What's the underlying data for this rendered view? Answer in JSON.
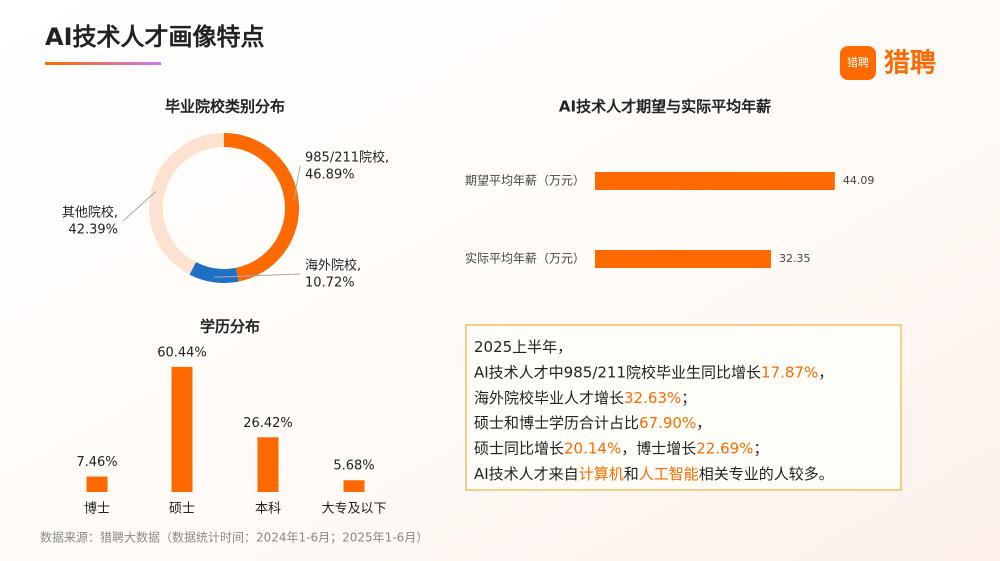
{
  "header": {
    "title": "AI技术人才画像特点"
  },
  "logo": {
    "badge": "猎聘",
    "name": "猎聘"
  },
  "chart_data": [
    {
      "type": "donut",
      "title": "毕业院校类别分布",
      "categories": [
        "985/211院校,",
        "海外院校,",
        "其他院校,"
      ],
      "values": [
        46.89,
        10.72,
        42.39
      ],
      "value_labels": [
        "46.89%",
        "10.72%",
        "42.39%"
      ],
      "colors": [
        "#ff6a00",
        "#1f6fc6",
        "#fde2d2"
      ]
    },
    {
      "type": "hbar",
      "title": "AI技术人才期望与实际平均年薪",
      "categories": [
        "期望平均年薪（万元）",
        "实际平均年薪（万元）"
      ],
      "values": [
        44.09,
        32.35
      ],
      "color": "#ff6a00"
    },
    {
      "type": "bar",
      "title": "学历分布",
      "categories": [
        "博士",
        "硕士",
        "本科",
        "大专及以下"
      ],
      "values": [
        7.46,
        60.44,
        26.42,
        5.68
      ],
      "value_labels": [
        "7.46%",
        "60.44%",
        "26.42%",
        "5.68%"
      ],
      "color": "#ff6a00"
    }
  ],
  "note": {
    "lines": [
      [
        "2025上半年，"
      ],
      [
        "AI技术人才中985/211院校毕业生同比增长",
        "17.87%",
        "，"
      ],
      [
        "海外院校毕业人才增长",
        "32.63%",
        "；"
      ],
      [
        "硕士和博士学历合计占比",
        "67.90%",
        "，"
      ],
      [
        "硕士同比增长",
        "20.14%",
        "，博士增长",
        "22.69%",
        "；"
      ],
      [
        "AI技术人才来自",
        "计算机",
        "和",
        "人工智能",
        "相关专业的人较多。"
      ]
    ]
  },
  "source": "数据来源：猎聘大数据（数据统计时间：2024年1-6月；2025年1-6月）"
}
